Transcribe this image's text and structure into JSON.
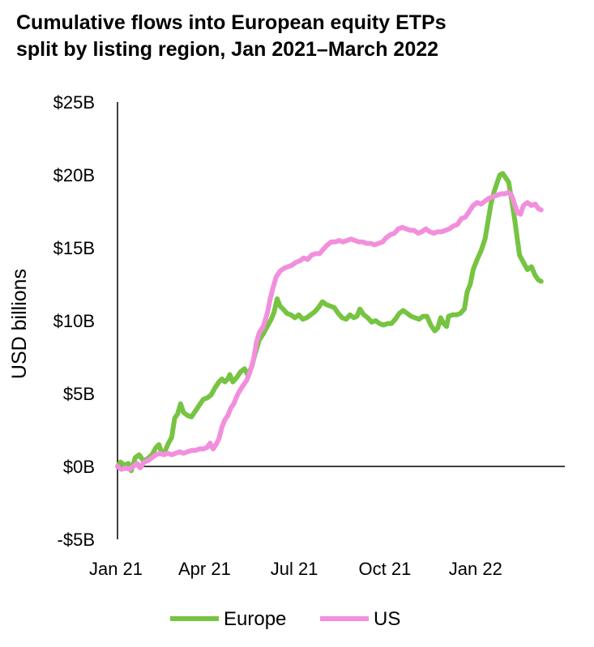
{
  "chart_data": {
    "type": "line",
    "title": [
      "Cumulative flows into European equity ETPs",
      "split by listing region, Jan 2021–March 2022"
    ],
    "ylabel": "USD billions",
    "xlabel": "",
    "ylim": [
      -5,
      25
    ],
    "xlim": [
      "2021-01-01",
      "2022-03-31"
    ],
    "y_ticks": [
      {
        "value": 25,
        "label": "$25B"
      },
      {
        "value": 20,
        "label": "$20B"
      },
      {
        "value": 15,
        "label": "$15B"
      },
      {
        "value": 10,
        "label": "$10B"
      },
      {
        "value": 5,
        "label": "$5B"
      },
      {
        "value": 0,
        "label": "$0B"
      },
      {
        "value": -5,
        "label": "-$5B"
      }
    ],
    "x_ticks": [
      {
        "value": "2021-01-01",
        "label": "Jan 21"
      },
      {
        "value": "2021-04-01",
        "label": "Apr 21"
      },
      {
        "value": "2021-07-01",
        "label": "Jul 21"
      },
      {
        "value": "2021-10-01",
        "label": "Oct 21"
      },
      {
        "value": "2022-01-01",
        "label": "Jan 22"
      }
    ],
    "grid": false,
    "legend_position": "bottom",
    "series": [
      {
        "name": "Europe",
        "color": "#76c442",
        "points": [
          [
            "2021-01-01",
            0.0
          ],
          [
            "2021-01-04",
            0.3
          ],
          [
            "2021-01-08",
            0.1
          ],
          [
            "2021-01-12",
            0.2
          ],
          [
            "2021-01-15",
            -0.3
          ],
          [
            "2021-01-19",
            0.6
          ],
          [
            "2021-01-23",
            0.8
          ],
          [
            "2021-01-27",
            0.4
          ],
          [
            "2021-01-31",
            0.5
          ],
          [
            "2021-02-05",
            0.8
          ],
          [
            "2021-02-09",
            1.3
          ],
          [
            "2021-02-12",
            1.5
          ],
          [
            "2021-02-15",
            0.9
          ],
          [
            "2021-02-18",
            1.0
          ],
          [
            "2021-02-21",
            1.5
          ],
          [
            "2021-02-25",
            2.0
          ],
          [
            "2021-02-28",
            3.3
          ],
          [
            "2021-03-03",
            3.6
          ],
          [
            "2021-03-06",
            4.3
          ],
          [
            "2021-03-09",
            3.7
          ],
          [
            "2021-03-13",
            3.5
          ],
          [
            "2021-03-17",
            3.4
          ],
          [
            "2021-03-21",
            3.8
          ],
          [
            "2021-03-25",
            4.2
          ],
          [
            "2021-03-29",
            4.6
          ],
          [
            "2021-04-02",
            4.7
          ],
          [
            "2021-04-06",
            4.9
          ],
          [
            "2021-04-10",
            5.4
          ],
          [
            "2021-04-14",
            5.8
          ],
          [
            "2021-04-17",
            6.0
          ],
          [
            "2021-04-20",
            5.8
          ],
          [
            "2021-04-23",
            6.0
          ],
          [
            "2021-04-25",
            6.3
          ],
          [
            "2021-04-28",
            5.8
          ],
          [
            "2021-05-02",
            6.1
          ],
          [
            "2021-05-06",
            6.5
          ],
          [
            "2021-05-10",
            6.7
          ],
          [
            "2021-05-13",
            6.3
          ],
          [
            "2021-05-17",
            6.8
          ],
          [
            "2021-05-21",
            7.8
          ],
          [
            "2021-05-25",
            8.7
          ],
          [
            "2021-05-29",
            9.1
          ],
          [
            "2021-06-02",
            9.6
          ],
          [
            "2021-06-06",
            10.1
          ],
          [
            "2021-06-09",
            10.6
          ],
          [
            "2021-06-12",
            11.5
          ],
          [
            "2021-06-15",
            11.0
          ],
          [
            "2021-06-18",
            10.8
          ],
          [
            "2021-06-22",
            10.5
          ],
          [
            "2021-06-26",
            10.4
          ],
          [
            "2021-06-30",
            10.2
          ],
          [
            "2021-07-04",
            10.4
          ],
          [
            "2021-07-08",
            10.1
          ],
          [
            "2021-07-12",
            10.2
          ],
          [
            "2021-07-16",
            10.4
          ],
          [
            "2021-07-20",
            10.6
          ],
          [
            "2021-07-24",
            10.9
          ],
          [
            "2021-07-28",
            11.3
          ],
          [
            "2021-08-01",
            11.1
          ],
          [
            "2021-08-05",
            11.0
          ],
          [
            "2021-08-09",
            10.9
          ],
          [
            "2021-08-13",
            10.5
          ],
          [
            "2021-08-17",
            10.2
          ],
          [
            "2021-08-21",
            10.1
          ],
          [
            "2021-08-25",
            10.4
          ],
          [
            "2021-08-29",
            10.2
          ],
          [
            "2021-09-01",
            10.3
          ],
          [
            "2021-09-04",
            10.8
          ],
          [
            "2021-09-08",
            10.4
          ],
          [
            "2021-09-12",
            10.2
          ],
          [
            "2021-09-16",
            9.9
          ],
          [
            "2021-09-20",
            10.0
          ],
          [
            "2021-09-24",
            9.8
          ],
          [
            "2021-09-28",
            9.7
          ],
          [
            "2021-10-02",
            9.8
          ],
          [
            "2021-10-06",
            9.8
          ],
          [
            "2021-10-10",
            10.1
          ],
          [
            "2021-10-14",
            10.5
          ],
          [
            "2021-10-18",
            10.7
          ],
          [
            "2021-10-22",
            10.5
          ],
          [
            "2021-10-26",
            10.3
          ],
          [
            "2021-10-30",
            10.2
          ],
          [
            "2021-11-03",
            10.1
          ],
          [
            "2021-11-07",
            10.3
          ],
          [
            "2021-11-11",
            10.3
          ],
          [
            "2021-11-15",
            9.7
          ],
          [
            "2021-11-19",
            9.3
          ],
          [
            "2021-11-22",
            9.5
          ],
          [
            "2021-11-25",
            10.2
          ],
          [
            "2021-11-28",
            9.8
          ],
          [
            "2021-12-01",
            9.6
          ],
          [
            "2021-12-03",
            10.3
          ],
          [
            "2021-12-07",
            10.4
          ],
          [
            "2021-12-11",
            10.4
          ],
          [
            "2021-12-15",
            10.5
          ],
          [
            "2021-12-19",
            10.8
          ],
          [
            "2021-12-22",
            12.0
          ],
          [
            "2021-12-25",
            12.5
          ],
          [
            "2021-12-28",
            13.5
          ],
          [
            "2022-01-01",
            14.2
          ],
          [
            "2022-01-05",
            14.8
          ],
          [
            "2022-01-09",
            15.6
          ],
          [
            "2022-01-12",
            16.8
          ],
          [
            "2022-01-15",
            18.0
          ],
          [
            "2022-01-18",
            18.8
          ],
          [
            "2022-01-21",
            19.4
          ],
          [
            "2022-01-24",
            20.0
          ],
          [
            "2022-01-27",
            20.1
          ],
          [
            "2022-01-30",
            19.8
          ],
          [
            "2022-02-02",
            19.5
          ],
          [
            "2022-02-05",
            18.3
          ],
          [
            "2022-02-08",
            17.0
          ],
          [
            "2022-02-10",
            16.0
          ],
          [
            "2022-02-13",
            14.5
          ],
          [
            "2022-02-17",
            14.0
          ],
          [
            "2022-02-21",
            13.5
          ],
          [
            "2022-02-25",
            13.7
          ],
          [
            "2022-03-01",
            13.1
          ],
          [
            "2022-03-04",
            12.8
          ],
          [
            "2022-03-07",
            12.7
          ]
        ]
      },
      {
        "name": "US",
        "color": "#f28fdd",
        "points": [
          [
            "2021-01-01",
            0.0
          ],
          [
            "2021-01-05",
            -0.2
          ],
          [
            "2021-01-09",
            -0.1
          ],
          [
            "2021-01-13",
            -0.2
          ],
          [
            "2021-01-17",
            0.0
          ],
          [
            "2021-01-21",
            0.2
          ],
          [
            "2021-01-24",
            -0.1
          ],
          [
            "2021-01-28",
            0.3
          ],
          [
            "2021-02-01",
            0.4
          ],
          [
            "2021-02-05",
            0.6
          ],
          [
            "2021-02-09",
            0.8
          ],
          [
            "2021-02-13",
            0.9
          ],
          [
            "2021-02-17",
            0.8
          ],
          [
            "2021-02-21",
            0.9
          ],
          [
            "2021-02-25",
            0.8
          ],
          [
            "2021-03-01",
            0.9
          ],
          [
            "2021-03-05",
            1.0
          ],
          [
            "2021-03-09",
            0.9
          ],
          [
            "2021-03-13",
            1.0
          ],
          [
            "2021-03-17",
            1.1
          ],
          [
            "2021-03-21",
            1.1
          ],
          [
            "2021-03-25",
            1.2
          ],
          [
            "2021-03-29",
            1.2
          ],
          [
            "2021-04-02",
            1.3
          ],
          [
            "2021-04-05",
            1.6
          ],
          [
            "2021-04-08",
            1.2
          ],
          [
            "2021-04-11",
            1.5
          ],
          [
            "2021-04-14",
            1.9
          ],
          [
            "2021-04-17",
            2.7
          ],
          [
            "2021-04-20",
            3.2
          ],
          [
            "2021-04-23",
            3.5
          ],
          [
            "2021-04-26",
            4.0
          ],
          [
            "2021-04-29",
            4.3
          ],
          [
            "2021-05-02",
            4.8
          ],
          [
            "2021-05-05",
            5.2
          ],
          [
            "2021-05-09",
            5.6
          ],
          [
            "2021-05-12",
            5.9
          ],
          [
            "2021-05-15",
            6.4
          ],
          [
            "2021-05-19",
            7.3
          ],
          [
            "2021-05-22",
            8.5
          ],
          [
            "2021-05-25",
            9.2
          ],
          [
            "2021-05-29",
            9.6
          ],
          [
            "2021-06-02",
            10.5
          ],
          [
            "2021-06-05",
            11.5
          ],
          [
            "2021-06-08",
            12.3
          ],
          [
            "2021-06-11",
            13.0
          ],
          [
            "2021-06-15",
            13.4
          ],
          [
            "2021-06-19",
            13.6
          ],
          [
            "2021-06-23",
            13.7
          ],
          [
            "2021-06-27",
            13.8
          ],
          [
            "2021-07-01",
            14.0
          ],
          [
            "2021-07-05",
            14.1
          ],
          [
            "2021-07-09",
            14.3
          ],
          [
            "2021-07-13",
            14.2
          ],
          [
            "2021-07-17",
            14.5
          ],
          [
            "2021-07-21",
            14.6
          ],
          [
            "2021-07-25",
            14.6
          ],
          [
            "2021-07-29",
            14.9
          ],
          [
            "2021-08-02",
            15.2
          ],
          [
            "2021-08-06",
            15.4
          ],
          [
            "2021-08-10",
            15.4
          ],
          [
            "2021-08-14",
            15.5
          ],
          [
            "2021-08-18",
            15.4
          ],
          [
            "2021-08-22",
            15.5
          ],
          [
            "2021-08-26",
            15.6
          ],
          [
            "2021-08-30",
            15.5
          ],
          [
            "2021-09-03",
            15.4
          ],
          [
            "2021-09-07",
            15.4
          ],
          [
            "2021-09-11",
            15.3
          ],
          [
            "2021-09-15",
            15.3
          ],
          [
            "2021-09-19",
            15.2
          ],
          [
            "2021-09-23",
            15.3
          ],
          [
            "2021-09-27",
            15.4
          ],
          [
            "2021-10-01",
            15.7
          ],
          [
            "2021-10-05",
            15.9
          ],
          [
            "2021-10-09",
            16.0
          ],
          [
            "2021-10-13",
            16.3
          ],
          [
            "2021-10-17",
            16.4
          ],
          [
            "2021-10-21",
            16.3
          ],
          [
            "2021-10-25",
            16.2
          ],
          [
            "2021-10-29",
            16.2
          ],
          [
            "2021-11-02",
            16.0
          ],
          [
            "2021-11-06",
            16.1
          ],
          [
            "2021-11-10",
            16.3
          ],
          [
            "2021-11-14",
            16.1
          ],
          [
            "2021-11-18",
            16.0
          ],
          [
            "2021-11-22",
            16.1
          ],
          [
            "2021-11-26",
            16.1
          ],
          [
            "2021-11-30",
            16.2
          ],
          [
            "2021-12-04",
            16.3
          ],
          [
            "2021-12-08",
            16.5
          ],
          [
            "2021-12-12",
            16.6
          ],
          [
            "2021-12-16",
            17.0
          ],
          [
            "2021-12-20",
            17.1
          ],
          [
            "2021-12-24",
            17.5
          ],
          [
            "2021-12-28",
            17.9
          ],
          [
            "2022-01-01",
            18.1
          ],
          [
            "2022-01-05",
            18.0
          ],
          [
            "2022-01-09",
            18.2
          ],
          [
            "2022-01-13",
            18.4
          ],
          [
            "2022-01-17",
            18.5
          ],
          [
            "2022-01-21",
            18.6
          ],
          [
            "2022-01-25",
            18.7
          ],
          [
            "2022-01-29",
            18.7
          ],
          [
            "2022-02-02",
            18.8
          ],
          [
            "2022-02-05",
            18.6
          ],
          [
            "2022-02-08",
            18.0
          ],
          [
            "2022-02-11",
            17.4
          ],
          [
            "2022-02-14",
            17.3
          ],
          [
            "2022-02-17",
            17.9
          ],
          [
            "2022-02-21",
            18.1
          ],
          [
            "2022-02-25",
            17.9
          ],
          [
            "2022-03-01",
            18.0
          ],
          [
            "2022-03-04",
            17.7
          ],
          [
            "2022-03-07",
            17.6
          ]
        ]
      }
    ]
  }
}
